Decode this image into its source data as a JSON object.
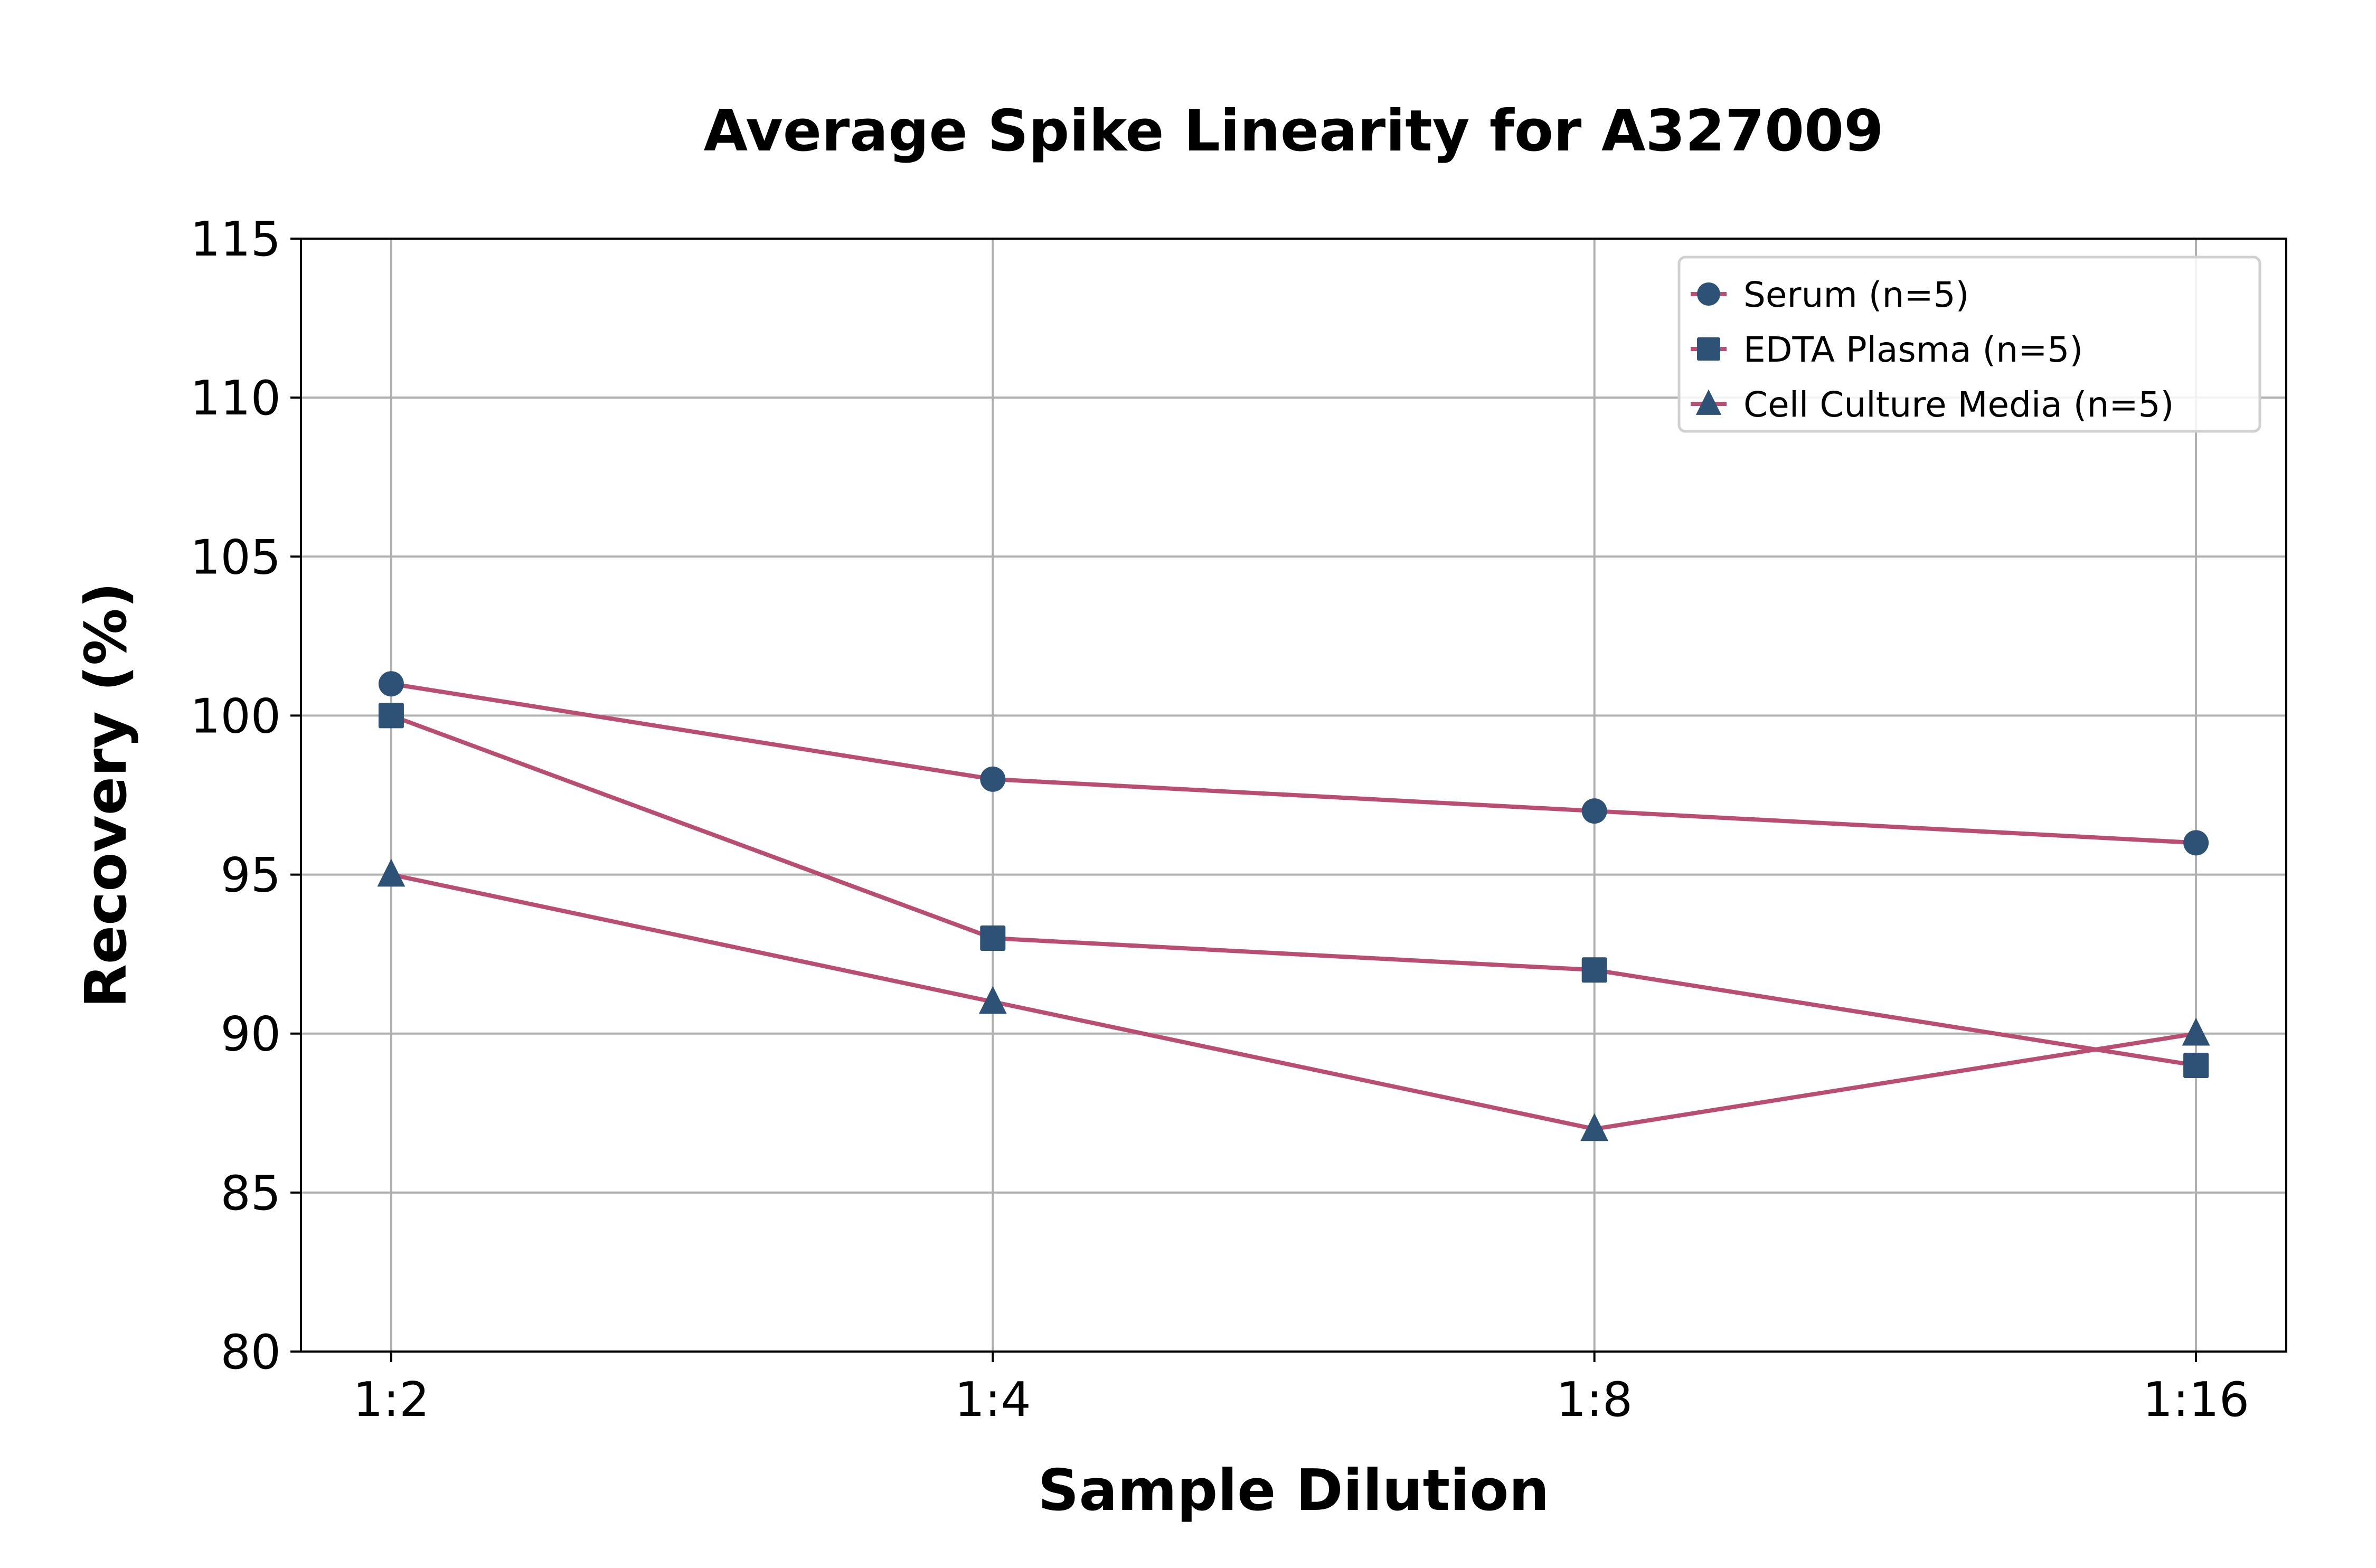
{
  "chart_data": {
    "type": "line",
    "title": "Average Spike Linearity for A327009",
    "xlabel": "Sample Dilution",
    "ylabel": "Recovery (%)",
    "categories": [
      "1:2",
      "1:4",
      "1:8",
      "1:16"
    ],
    "ylim": [
      80,
      115
    ],
    "yticks": [
      80,
      85,
      90,
      95,
      100,
      105,
      110,
      115
    ],
    "ytick_labels": [
      "80",
      "85",
      "90",
      "95",
      "100",
      "105",
      "110",
      "115"
    ],
    "grid": true,
    "legend_position": "top-right",
    "line_color": "#b94e72",
    "marker_color": "#2e5275",
    "series": [
      {
        "name": "Serum (n=5)",
        "marker": "circle",
        "values": [
          101,
          98,
          97,
          96
        ]
      },
      {
        "name": "EDTA Plasma (n=5)",
        "marker": "square",
        "values": [
          100,
          93,
          92,
          89
        ]
      },
      {
        "name": "Cell Culture Media (n=5)",
        "marker": "triangle",
        "values": [
          95,
          91,
          87,
          90
        ]
      }
    ]
  }
}
